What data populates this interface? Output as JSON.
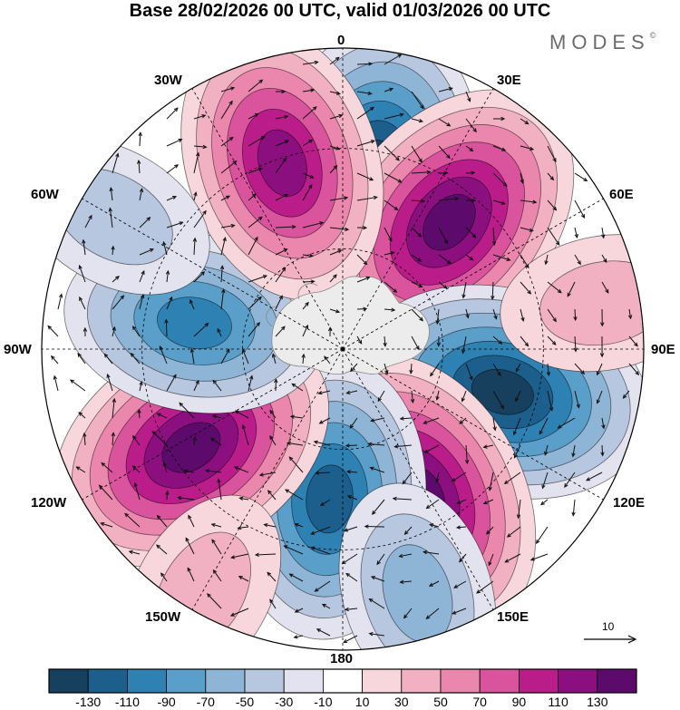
{
  "title": "Base 28/02/2026 00 UTC, valid 01/03/2026 00 UTC",
  "brand": {
    "text": "MODES",
    "mark": "©"
  },
  "map": {
    "projection": "south-polar-stereographic",
    "longitude_labels": {
      "top": "0",
      "top_right_1": "30E",
      "top_right_2": "60E",
      "right": "90E",
      "bottom_right_1": "120E",
      "bottom_right_2": "150E",
      "bottom": "180",
      "bottom_left_1": "150W",
      "bottom_left_2": "120W",
      "left": "90W",
      "top_left_2": "60W",
      "top_left_1": "30W"
    },
    "fill_palette": {
      "colors": [
        "#17405e",
        "#1d5f8c",
        "#2e81b3",
        "#5a9fca",
        "#8fb5d6",
        "#b8c7e0",
        "#e2e3ef",
        "#ffffff",
        "#f8d7dc",
        "#f2b1c2",
        "#eb86ac",
        "#d9549d",
        "#ba1c8a",
        "#8b0f7f",
        "#5c0a6b"
      ],
      "boundaries": [
        "-130",
        "-110",
        "-90",
        "-70",
        "-50",
        "-30",
        "-10",
        "10",
        "30",
        "50",
        "70",
        "90",
        "110",
        "130"
      ]
    },
    "anomalies": [
      {
        "name": "low-0",
        "sign": "neg",
        "lon": 10,
        "r": 0.6,
        "level": 7
      },
      {
        "name": "high-30e",
        "sign": "pos",
        "lon": 40,
        "r": 0.55,
        "level": 7
      },
      {
        "name": "low-95e",
        "sign": "neg",
        "lon": 105,
        "r": 0.55,
        "level": 7
      },
      {
        "name": "high-150e",
        "sign": "pos",
        "lon": 152,
        "r": 0.55,
        "level": 7
      },
      {
        "name": "low-180",
        "sign": "neg",
        "lon": 185,
        "r": 0.5,
        "level": 6
      },
      {
        "name": "high-125w",
        "sign": "pos",
        "lon": 237,
        "r": 0.6,
        "level": 7
      },
      {
        "name": "low-85w",
        "sign": "neg",
        "lon": 280,
        "r": 0.5,
        "level": 5
      },
      {
        "name": "high-20w",
        "sign": "pos",
        "lon": 342,
        "r": 0.65,
        "level": 6
      },
      {
        "name": "low-60w",
        "sign": "neg",
        "lon": 300,
        "r": 0.88,
        "level": 2
      },
      {
        "name": "weak-high-150w",
        "sign": "pos",
        "lon": 210,
        "r": 0.93,
        "level": 2
      },
      {
        "name": "weak-low-160e",
        "sign": "neg",
        "lon": 163,
        "r": 0.85,
        "level": 3
      },
      {
        "name": "weak-high-75e",
        "sign": "pos",
        "lon": 80,
        "r": 0.88,
        "level": 2
      }
    ]
  },
  "vector_reference": {
    "value": "10"
  },
  "colorbar": {
    "tick_labels": [
      "-130",
      "-110",
      "-90",
      "-70",
      "-50",
      "-30",
      "-10",
      "10",
      "30",
      "50",
      "70",
      "90",
      "110",
      "130"
    ]
  }
}
